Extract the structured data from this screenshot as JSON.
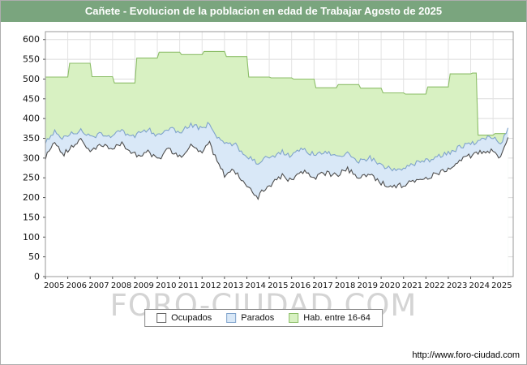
{
  "title_bar": {
    "text": "Cañete - Evolucion de la poblacion en edad de Trabajar Agosto de 2025",
    "bg": "#7aa57e"
  },
  "watermark": "FORO-CIUDAD.COM",
  "footer": {
    "url": "http://www.foro-ciudad.com"
  },
  "legend": {
    "items": [
      {
        "label": "Ocupados",
        "fill": "#ffffff",
        "stroke": "#666666"
      },
      {
        "label": "Parados",
        "fill": "#d9e8f7",
        "stroke": "#7fa3cc"
      },
      {
        "label": "Hab. entre 16-64",
        "fill": "#d8f1c2",
        "stroke": "#8cbe68"
      }
    ]
  },
  "chart_data": {
    "type": "area",
    "title": "Cañete - Evolucion de la poblacion en edad de Trabajar Agosto de 2025",
    "xlabel": "",
    "ylabel": "",
    "grid": true,
    "legend_position": "bottom-center",
    "x_axis": {
      "min": 2005,
      "max": 2025.9,
      "data_end": 2025.67,
      "ticks": [
        2005,
        2006,
        2007,
        2008,
        2009,
        2010,
        2011,
        2012,
        2013,
        2014,
        2015,
        2016,
        2017,
        2018,
        2019,
        2020,
        2021,
        2022,
        2023,
        2024,
        2025
      ]
    },
    "y_axis": {
      "min": 0,
      "max": 620,
      "tick_step": 50,
      "ticks": [
        0,
        50,
        100,
        150,
        200,
        250,
        300,
        350,
        400,
        450,
        500,
        550,
        600
      ]
    },
    "series": [
      {
        "name": "Hab. entre 16-64",
        "style": "step",
        "fill": "#d8f1c2",
        "stroke": "#8cbe68",
        "points": [
          [
            2005,
            505
          ],
          [
            2006,
            540
          ],
          [
            2007,
            506
          ],
          [
            2008,
            490
          ],
          [
            2009,
            553
          ],
          [
            2010,
            568
          ],
          [
            2011,
            562
          ],
          [
            2012,
            570
          ],
          [
            2013,
            557
          ],
          [
            2014,
            505
          ],
          [
            2015,
            503
          ],
          [
            2016,
            500
          ],
          [
            2017,
            478
          ],
          [
            2018,
            486
          ],
          [
            2019,
            477
          ],
          [
            2020,
            465
          ],
          [
            2021,
            462
          ],
          [
            2022,
            480
          ],
          [
            2023,
            513
          ],
          [
            2024,
            515
          ],
          [
            2024.3,
            358
          ],
          [
            2025,
            362
          ],
          [
            2025.67,
            372
          ]
        ]
      },
      {
        "name": "Parados (borde superior = Ocupados + Parados)",
        "style": "line",
        "fill": "#d9e8f7",
        "stroke": "#7fa3cc",
        "points": [
          [
            2005,
            342
          ],
          [
            2005.4,
            368
          ],
          [
            2005.8,
            350
          ],
          [
            2006.2,
            362
          ],
          [
            2006.6,
            372
          ],
          [
            2007,
            352
          ],
          [
            2007.5,
            362
          ],
          [
            2008,
            356
          ],
          [
            2008.4,
            368
          ],
          [
            2008.8,
            352
          ],
          [
            2009.2,
            362
          ],
          [
            2009.6,
            372
          ],
          [
            2010,
            358
          ],
          [
            2010.5,
            376
          ],
          [
            2011,
            364
          ],
          [
            2011.5,
            384
          ],
          [
            2012,
            372
          ],
          [
            2012.3,
            390
          ],
          [
            2012.6,
            358
          ],
          [
            2013,
            335
          ],
          [
            2013.4,
            338
          ],
          [
            2013.8,
            315
          ],
          [
            2014.2,
            298
          ],
          [
            2014.5,
            288
          ],
          [
            2014.8,
            298
          ],
          [
            2015.2,
            304
          ],
          [
            2015.6,
            316
          ],
          [
            2016,
            306
          ],
          [
            2016.5,
            322
          ],
          [
            2017,
            308
          ],
          [
            2017.5,
            316
          ],
          [
            2018,
            302
          ],
          [
            2018.5,
            312
          ],
          [
            2019,
            292
          ],
          [
            2019.5,
            300
          ],
          [
            2020,
            282
          ],
          [
            2020.5,
            270
          ],
          [
            2021,
            276
          ],
          [
            2021.5,
            286
          ],
          [
            2022,
            292
          ],
          [
            2022.5,
            302
          ],
          [
            2023,
            312
          ],
          [
            2023.5,
            328
          ],
          [
            2024,
            334
          ],
          [
            2024.5,
            348
          ],
          [
            2025,
            352
          ],
          [
            2025.35,
            338
          ],
          [
            2025.67,
            380
          ]
        ]
      },
      {
        "name": "Ocupados",
        "style": "line",
        "fill": "#ffffff",
        "stroke": "#4d4d4d",
        "points": [
          [
            2005,
            300
          ],
          [
            2005.4,
            345
          ],
          [
            2005.8,
            310
          ],
          [
            2006.2,
            330
          ],
          [
            2006.6,
            345
          ],
          [
            2007,
            318
          ],
          [
            2007.5,
            332
          ],
          [
            2008,
            322
          ],
          [
            2008.4,
            338
          ],
          [
            2008.8,
            318
          ],
          [
            2009.2,
            305
          ],
          [
            2009.6,
            315
          ],
          [
            2010,
            295
          ],
          [
            2010.5,
            322
          ],
          [
            2011,
            302
          ],
          [
            2011.5,
            330
          ],
          [
            2012,
            312
          ],
          [
            2012.3,
            345
          ],
          [
            2012.6,
            300
          ],
          [
            2013,
            258
          ],
          [
            2013.4,
            272
          ],
          [
            2013.8,
            245
          ],
          [
            2014.2,
            215
          ],
          [
            2014.5,
            202
          ],
          [
            2014.8,
            225
          ],
          [
            2015.2,
            238
          ],
          [
            2015.6,
            255
          ],
          [
            2016,
            242
          ],
          [
            2016.5,
            266
          ],
          [
            2017,
            250
          ],
          [
            2017.5,
            262
          ],
          [
            2018,
            256
          ],
          [
            2018.5,
            272
          ],
          [
            2019,
            248
          ],
          [
            2019.5,
            258
          ],
          [
            2020,
            238
          ],
          [
            2020.5,
            226
          ],
          [
            2021,
            232
          ],
          [
            2021.5,
            242
          ],
          [
            2022,
            246
          ],
          [
            2022.5,
            262
          ],
          [
            2023,
            272
          ],
          [
            2023.5,
            296
          ],
          [
            2024,
            306
          ],
          [
            2024.5,
            316
          ],
          [
            2025,
            318
          ],
          [
            2025.35,
            298
          ],
          [
            2025.67,
            358
          ]
        ]
      }
    ]
  }
}
